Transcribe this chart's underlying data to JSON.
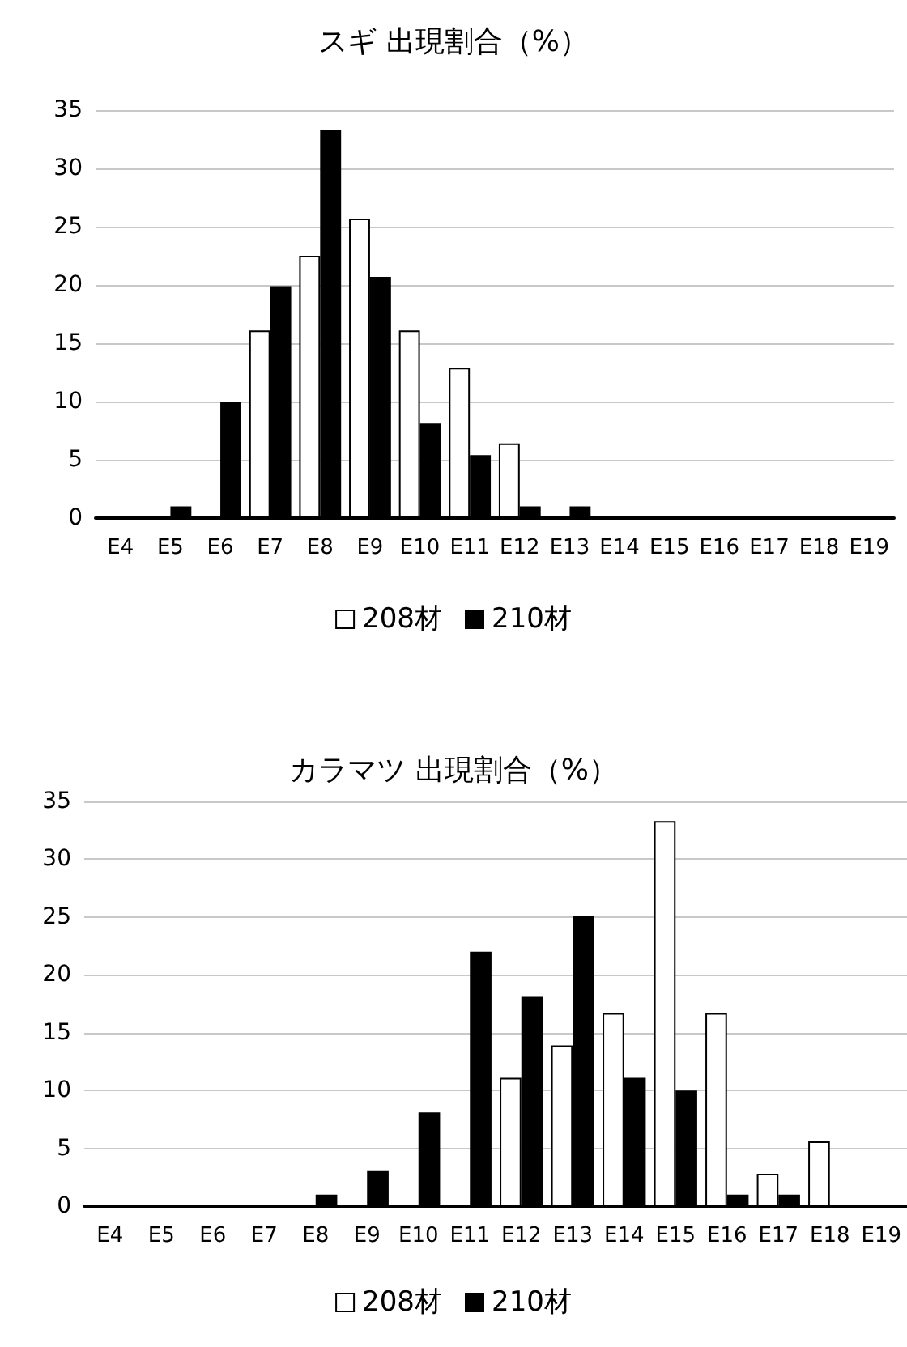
{
  "chart_data": [
    {
      "type": "bar",
      "title": "スギ 出現割合（%）",
      "categories": [
        "E4",
        "E5",
        "E6",
        "E7",
        "E8",
        "E9",
        "E10",
        "E11",
        "E12",
        "E13",
        "E14",
        "E15",
        "E16",
        "E17",
        "E18",
        "E19"
      ],
      "series": [
        {
          "name": "208材",
          "color": "#ffffff",
          "values": [
            0,
            0,
            0,
            16.1,
            22.5,
            25.7,
            16.1,
            12.9,
            6.4,
            0,
            0,
            0,
            0,
            0,
            0,
            0
          ]
        },
        {
          "name": "210材",
          "color": "#000000",
          "values": [
            0,
            1,
            10,
            19.9,
            33.3,
            20.7,
            8.1,
            5.4,
            1,
            1,
            0,
            0,
            0,
            0,
            0,
            0
          ]
        }
      ],
      "ylim": [
        0,
        35
      ],
      "yticks": [
        0,
        5,
        10,
        15,
        20,
        25,
        30,
        35
      ],
      "grid": "y",
      "legend": "bottom"
    },
    {
      "type": "bar",
      "title": "カラマツ 出現割合（%）",
      "categories": [
        "E4",
        "E5",
        "E6",
        "E7",
        "E8",
        "E9",
        "E10",
        "E11",
        "E12",
        "E13",
        "E14",
        "E15",
        "E16",
        "E17",
        "E18",
        "E19"
      ],
      "series": [
        {
          "name": "208材",
          "color": "#ffffff",
          "values": [
            0,
            0,
            0,
            0,
            0,
            0,
            0,
            0,
            11.1,
            13.9,
            16.7,
            33.3,
            16.7,
            2.8,
            5.6,
            0
          ]
        },
        {
          "name": "210材",
          "color": "#000000",
          "values": [
            0,
            0,
            0,
            0,
            1,
            3.1,
            8.1,
            22,
            18.1,
            25.1,
            11.1,
            10,
            1,
            1,
            0,
            0
          ]
        }
      ],
      "ylim": [
        0,
        35
      ],
      "yticks": [
        0,
        5,
        10,
        15,
        20,
        25,
        30,
        35
      ],
      "grid": "y",
      "legend": "bottom"
    }
  ]
}
